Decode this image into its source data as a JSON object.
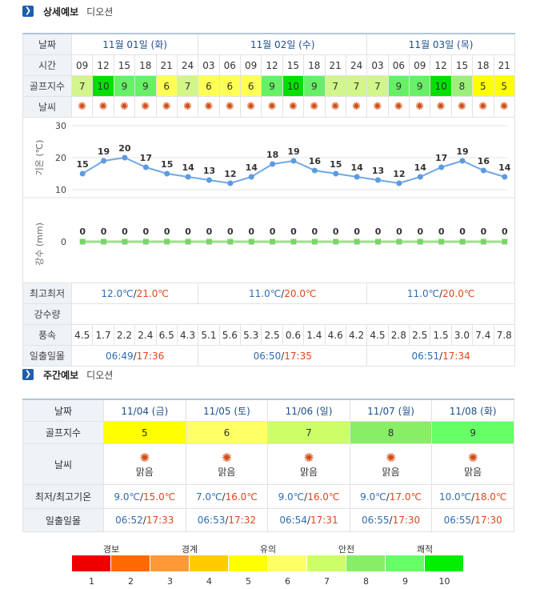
{
  "detail": {
    "section_title": "상세예보",
    "location": "디오션",
    "labels": {
      "date": "날짜",
      "time": "시간",
      "golf": "골프지수",
      "weather": "날씨",
      "temp_axis": "기온 (℃)",
      "rain_axis": "강수 (mm)",
      "minmax": "최고최저",
      "rain": "강수량",
      "wind": "풍속",
      "sun": "일출일몰"
    },
    "days": [
      "11월 01일 (화)",
      "11월 02일 (수)",
      "11월 03일 (목)"
    ],
    "times": [
      "09",
      "12",
      "15",
      "18",
      "21",
      "24",
      "03",
      "06",
      "09",
      "12",
      "15",
      "18",
      "21",
      "24",
      "03",
      "06",
      "09",
      "12",
      "15",
      "18",
      "21"
    ],
    "golf_index": [
      7,
      10,
      9,
      9,
      6,
      7,
      6,
      6,
      6,
      9,
      10,
      9,
      7,
      7,
      7,
      9,
      9,
      10,
      8,
      5,
      5
    ],
    "weather_icon": "sun-icon",
    "temps": [
      15,
      19,
      20,
      17,
      15,
      14,
      13,
      12,
      14,
      18,
      19,
      16,
      15,
      14,
      13,
      12,
      14,
      17,
      19,
      16,
      14
    ],
    "rain_values": [
      0,
      0,
      0,
      0,
      0,
      0,
      0,
      0,
      0,
      0,
      0,
      0,
      0,
      0,
      0,
      0,
      0,
      0,
      0,
      0,
      0
    ],
    "temp_ticks": [
      "30",
      "20",
      "10"
    ],
    "rain_tick": "0",
    "minmax": [
      {
        "lo": "12.0℃",
        "sep": "/",
        "hi": "21.0℃"
      },
      {
        "lo": "11.0℃",
        "sep": "/",
        "hi": "20.0℃"
      },
      {
        "lo": "11.0℃",
        "sep": "/",
        "hi": "20.0℃"
      }
    ],
    "wind": [
      "4.5",
      "1.7",
      "2.2",
      "2.4",
      "6.5",
      "4.3",
      "5.1",
      "5.6",
      "5.3",
      "2.5",
      "0.6",
      "1.4",
      "4.6",
      "4.2",
      "4.5",
      "2.8",
      "2.5",
      "1.5",
      "3.0",
      "7.4",
      "7.8"
    ],
    "sunrise_sunset": [
      {
        "rise": "06:49",
        "sep": "/",
        "set": "17:36"
      },
      {
        "rise": "06:50",
        "sep": "/",
        "set": "17:35"
      },
      {
        "rise": "06:51",
        "sep": "/",
        "set": "17:34"
      }
    ]
  },
  "weekly": {
    "section_title": "주간예보",
    "location": "디오션",
    "labels": {
      "date": "날짜",
      "golf": "골프지수",
      "weather": "날씨",
      "minmax": "최저/최고기온",
      "sun": "일출일몰"
    },
    "days": [
      {
        "date": "11/04 (금)",
        "golf": "5",
        "weather": "맑음",
        "lo": "9.0℃",
        "hi": "15.0℃",
        "rise": "06:52",
        "set": "17:33"
      },
      {
        "date": "11/05 (토)",
        "golf": "6",
        "weather": "맑음",
        "lo": "7.0℃",
        "hi": "16.0℃",
        "rise": "06:53",
        "set": "17:32"
      },
      {
        "date": "11/06 (일)",
        "golf": "7",
        "weather": "맑음",
        "lo": "9.0℃",
        "hi": "16.0℃",
        "rise": "06:54",
        "set": "17:31"
      },
      {
        "date": "11/07 (월)",
        "golf": "8",
        "weather": "맑음",
        "lo": "9.0℃",
        "hi": "17.0℃",
        "rise": "06:55",
        "set": "17:30"
      },
      {
        "date": "11/08 (화)",
        "golf": "9",
        "weather": "맑음",
        "lo": "10.0℃",
        "hi": "18.0℃",
        "rise": "06:55",
        "set": "17:30"
      }
    ],
    "sep": "/"
  },
  "legend": {
    "labels": [
      "경보",
      "경계",
      "유의",
      "안전",
      "쾌적"
    ],
    "numbers": [
      "1",
      "2",
      "3",
      "4",
      "5",
      "6",
      "7",
      "8",
      "9",
      "10"
    ],
    "colors": [
      "#ee0000",
      "#ff6a00",
      "#ff9933",
      "#ffcc00",
      "#ffff00",
      "#ffff66",
      "#ccff66",
      "#88ee66",
      "#66ff66",
      "#00ee00"
    ]
  },
  "chart_data": [
    {
      "type": "line",
      "ylabel": "기온 (℃)",
      "ylim": [
        10,
        30
      ],
      "x": [
        "09",
        "12",
        "15",
        "18",
        "21",
        "24",
        "03",
        "06",
        "09",
        "12",
        "15",
        "18",
        "21",
        "24",
        "03",
        "06",
        "09",
        "12",
        "15",
        "18",
        "21"
      ],
      "series": [
        {
          "values": [
            15,
            19,
            20,
            17,
            15,
            14,
            13,
            12,
            14,
            18,
            19,
            16,
            15,
            14,
            13,
            12,
            14,
            17,
            19,
            16,
            14
          ]
        }
      ]
    },
    {
      "type": "line",
      "ylabel": "강수 (mm)",
      "x": [
        "09",
        "12",
        "15",
        "18",
        "21",
        "24",
        "03",
        "06",
        "09",
        "12",
        "15",
        "18",
        "21",
        "24",
        "03",
        "06",
        "09",
        "12",
        "15",
        "18",
        "21"
      ],
      "series": [
        {
          "values": [
            0,
            0,
            0,
            0,
            0,
            0,
            0,
            0,
            0,
            0,
            0,
            0,
            0,
            0,
            0,
            0,
            0,
            0,
            0,
            0,
            0
          ]
        }
      ]
    }
  ]
}
